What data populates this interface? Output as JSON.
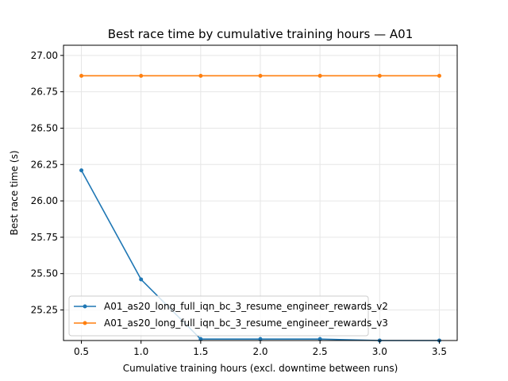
{
  "chart_data": {
    "type": "line",
    "title": "Best race time by cumulative training hours — A01",
    "xlabel": "Cumulative training hours (excl. downtime between runs)",
    "ylabel": "Best race time (s)",
    "x": [
      0.5,
      1.0,
      1.5,
      2.0,
      2.5,
      3.0,
      3.5
    ],
    "xticks": [
      "0.5",
      "1.0",
      "1.5",
      "2.0",
      "2.5",
      "3.0",
      "3.5"
    ],
    "yticks": [
      "25.25",
      "25.50",
      "25.75",
      "26.00",
      "26.25",
      "26.50",
      "26.75",
      "27.00"
    ],
    "xlim": [
      0.35,
      3.65
    ],
    "ylim": [
      25.04,
      27.07
    ],
    "grid": true,
    "legend_position": "lower left",
    "series": [
      {
        "name": "A01_as20_long_full_iqn_bc_3_resume_engineer_rewards_v2",
        "color": "#1f77b4",
        "values": [
          26.21,
          25.46,
          25.05,
          25.05,
          25.05,
          25.04,
          25.04
        ]
      },
      {
        "name": "A01_as20_long_full_iqn_bc_3_resume_engineer_rewards_v3",
        "color": "#ff7f0e",
        "values": [
          26.86,
          26.86,
          26.86,
          26.86,
          26.86,
          26.86,
          26.86
        ]
      }
    ]
  }
}
